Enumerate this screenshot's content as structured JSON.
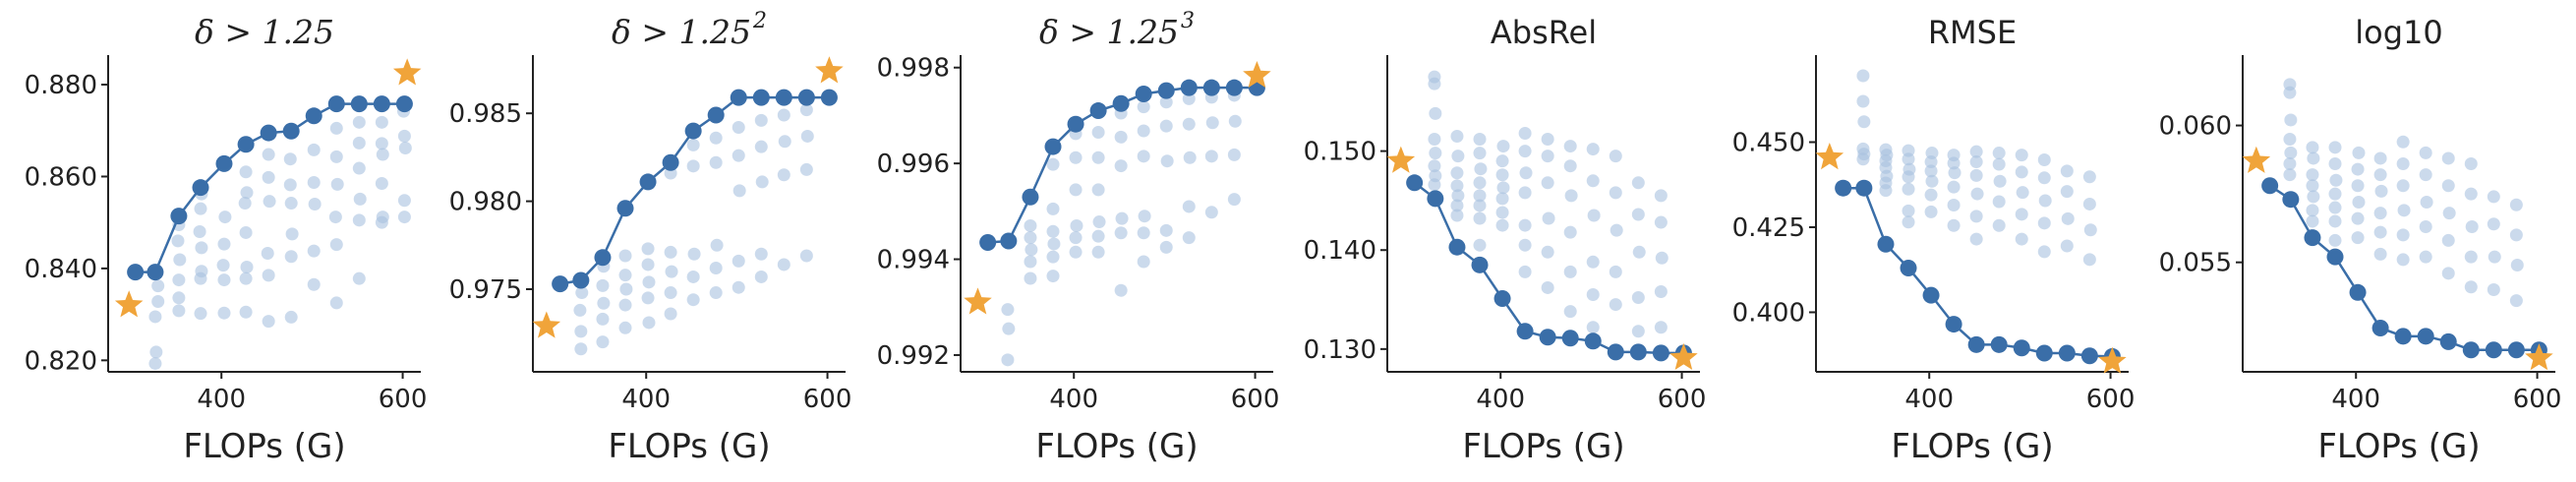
{
  "figure": {
    "colors": {
      "pareto": "#3a6ea8",
      "candidates": "#a9c1df",
      "star": "#f0a43a",
      "axis": "#222222"
    },
    "icons": {
      "reference_marker": "star-icon"
    }
  },
  "chart_data": [
    {
      "type": "scatter",
      "title": "δ > 1.25",
      "xlabel": "FLOPs (G)",
      "ylabel": "",
      "xlim": [
        275,
        620
      ],
      "ylim": [
        0.8175,
        0.886
      ],
      "xticks": [
        400,
        600
      ],
      "xtick_labels": [
        "400",
        "600"
      ],
      "yticks": [
        0.82,
        0.84,
        0.86,
        0.88
      ],
      "ytick_labels": [
        "0.820",
        "0.840",
        "0.860",
        "0.880"
      ],
      "reference": {
        "x": 298,
        "y": 0.832
      },
      "reference2": {
        "x": 605,
        "y": 0.8825
      },
      "pareto": {
        "x": [
          305,
          327,
          353,
          377,
          403,
          427,
          452,
          477,
          502,
          527,
          552,
          577,
          602
        ],
        "y": [
          0.8392,
          0.8392,
          0.8514,
          0.8576,
          0.8628,
          0.867,
          0.8695,
          0.8699,
          0.8732,
          0.8758,
          0.8758,
          0.8758,
          0.8758
        ]
      },
      "candidates": {
        "x": [
          327,
          328,
          327,
          330,
          330,
          353,
          353,
          353,
          354,
          352,
          353,
          377,
          377,
          378,
          378,
          376,
          377,
          378,
          403,
          403,
          402,
          403,
          404,
          427,
          427,
          428,
          427,
          426,
          428,
          427,
          452,
          452,
          451,
          453,
          452,
          452,
          477,
          477,
          478,
          477,
          476,
          476,
          502,
          502,
          503,
          502,
          502,
          527,
          527,
          526,
          528,
          527,
          527,
          552,
          552,
          553,
          552,
          552,
          552,
          577,
          578,
          577,
          578,
          577,
          577,
          602,
          602,
          603,
          602,
          601
        ],
        "y": [
          0.8193,
          0.8218,
          0.8295,
          0.8328,
          0.8362,
          0.8308,
          0.8336,
          0.8375,
          0.8419,
          0.846,
          0.8495,
          0.8302,
          0.8378,
          0.8394,
          0.8445,
          0.848,
          0.853,
          0.8562,
          0.8303,
          0.8375,
          0.8407,
          0.8453,
          0.8512,
          0.8305,
          0.8378,
          0.8403,
          0.8478,
          0.8542,
          0.8565,
          0.861,
          0.8285,
          0.8385,
          0.8433,
          0.8546,
          0.8598,
          0.8648,
          0.8294,
          0.8426,
          0.8475,
          0.8542,
          0.8582,
          0.8638,
          0.8365,
          0.8438,
          0.854,
          0.8587,
          0.8658,
          0.8325,
          0.8452,
          0.8512,
          0.8583,
          0.8643,
          0.8705,
          0.8378,
          0.8505,
          0.8551,
          0.8618,
          0.8673,
          0.8718,
          0.85,
          0.8512,
          0.8585,
          0.8648,
          0.8672,
          0.8718,
          0.8512,
          0.8548,
          0.8662,
          0.8688,
          0.8742
        ]
      }
    },
    {
      "type": "scatter",
      "title": "δ > 1.25",
      "title_superscript": "2",
      "xlabel": "FLOPs (G)",
      "ylabel": "",
      "xlim": [
        275,
        620
      ],
      "ylim": [
        0.9703,
        0.9882
      ],
      "xticks": [
        400,
        600
      ],
      "xtick_labels": [
        "400",
        "600"
      ],
      "yticks": [
        0.975,
        0.98,
        0.985
      ],
      "ytick_labels": [
        "0.975",
        "0.980",
        "0.985"
      ],
      "reference": {
        "x": 290,
        "y": 0.9729
      },
      "reference2": {
        "x": 602,
        "y": 0.9874
      },
      "pareto": {
        "x": [
          305,
          328,
          352,
          377,
          402,
          427,
          452,
          477,
          502,
          527,
          552,
          577,
          602
        ],
        "y": [
          0.9753,
          0.9755,
          0.9768,
          0.9796,
          0.9811,
          0.9822,
          0.984,
          0.9849,
          0.9859,
          0.9859,
          0.9859,
          0.9859,
          0.9859
        ]
      },
      "candidates": {
        "x": [
          328,
          328,
          327,
          329,
          352,
          352,
          353,
          352,
          353,
          377,
          377,
          378,
          377,
          377,
          403,
          402,
          403,
          402,
          402,
          427,
          427,
          428,
          427,
          427,
          452,
          452,
          453,
          452,
          452,
          477,
          477,
          478,
          477,
          477,
          502,
          502,
          503,
          502,
          502,
          527,
          527,
          528,
          527,
          527,
          552,
          552,
          553,
          552,
          577,
          577,
          578,
          577
        ],
        "y": [
          0.9716,
          0.9726,
          0.9738,
          0.9748,
          0.972,
          0.9733,
          0.9742,
          0.9752,
          0.9763,
          0.9728,
          0.9741,
          0.975,
          0.9758,
          0.9769,
          0.9731,
          0.9745,
          0.9754,
          0.9764,
          0.9773,
          0.9736,
          0.9748,
          0.976,
          0.9771,
          0.9816,
          0.9744,
          0.9757,
          0.977,
          0.982,
          0.9832,
          0.9748,
          0.9762,
          0.9775,
          0.9822,
          0.9836,
          0.9751,
          0.9766,
          0.9806,
          0.9826,
          0.9842,
          0.9757,
          0.977,
          0.9811,
          0.9831,
          0.9846,
          0.9764,
          0.9815,
          0.9834,
          0.9849,
          0.9769,
          0.9818,
          0.9837,
          0.9852
        ]
      }
    },
    {
      "type": "scatter",
      "title": "δ > 1.25",
      "title_superscript": "3",
      "xlabel": "FLOPs (G)",
      "ylabel": "",
      "xlim": [
        275,
        620
      ],
      "ylim": [
        0.99165,
        0.99822
      ],
      "xticks": [
        400,
        600
      ],
      "xtick_labels": [
        "400",
        "600"
      ],
      "yticks": [
        0.992,
        0.994,
        0.996,
        0.998
      ],
      "ytick_labels": [
        "0.992",
        "0.994",
        "0.996",
        "0.998"
      ],
      "reference": {
        "x": 294,
        "y": 0.9931
      },
      "reference2": {
        "x": 602,
        "y": 0.99783
      },
      "pareto": {
        "x": [
          305,
          328,
          352,
          377,
          402,
          427,
          452,
          477,
          502,
          527,
          552,
          577,
          602
        ],
        "y": [
          0.99435,
          0.99438,
          0.9953,
          0.99635,
          0.99682,
          0.9971,
          0.99725,
          0.99745,
          0.99752,
          0.99758,
          0.99758,
          0.99758,
          0.99758
        ]
      },
      "candidates": {
        "x": [
          327,
          328,
          327,
          352,
          352,
          353,
          352,
          352,
          377,
          377,
          378,
          377,
          377,
          377,
          402,
          402,
          403,
          402,
          402,
          402,
          427,
          427,
          428,
          427,
          427,
          427,
          452,
          452,
          453,
          452,
          452,
          452,
          477,
          477,
          478,
          477,
          477,
          477,
          502,
          502,
          503,
          502,
          502,
          527,
          527,
          528,
          527,
          527,
          552,
          552,
          553,
          552,
          577,
          577,
          578,
          577
        ],
        "y": [
          0.9919,
          0.99255,
          0.99295,
          0.9936,
          0.99395,
          0.9942,
          0.99445,
          0.9947,
          0.99365,
          0.99405,
          0.99432,
          0.99458,
          0.99505,
          0.99598,
          0.99415,
          0.99445,
          0.9947,
          0.99545,
          0.99612,
          0.99662,
          0.99415,
          0.99448,
          0.99478,
          0.99545,
          0.99612,
          0.99665,
          0.99335,
          0.99455,
          0.99485,
          0.99595,
          0.99655,
          0.99705,
          0.99395,
          0.99455,
          0.9949,
          0.99615,
          0.99668,
          0.99718,
          0.99425,
          0.9946,
          0.99605,
          0.99678,
          0.99728,
          0.99445,
          0.9951,
          0.99612,
          0.99682,
          0.99735,
          0.99498,
          0.99615,
          0.99685,
          0.99738,
          0.99525,
          0.99618,
          0.99688,
          0.99742
        ]
      }
    },
    {
      "type": "scatter",
      "title": "AbsRel",
      "xlabel": "FLOPs (G)",
      "ylabel": "",
      "xlim": [
        275,
        620
      ],
      "ylim": [
        0.1277,
        0.1595
      ],
      "xticks": [
        400,
        600
      ],
      "xtick_labels": [
        "400",
        "600"
      ],
      "yticks": [
        0.13,
        0.14,
        0.15
      ],
      "ytick_labels": [
        "0.130",
        "0.140",
        "0.150"
      ],
      "reference": {
        "x": 290,
        "y": 0.149
      },
      "reference2": {
        "x": 602,
        "y": 0.1291
      },
      "pareto": {
        "x": [
          305,
          328,
          352,
          377,
          402,
          427,
          452,
          477,
          502,
          527,
          552,
          577,
          602
        ],
        "y": [
          0.1468,
          0.1452,
          0.1403,
          0.1385,
          0.1351,
          0.1318,
          0.1312,
          0.1311,
          0.1308,
          0.1297,
          0.1297,
          0.1296,
          0.1296
        ]
      },
      "candidates": {
        "x": [
          327,
          327,
          328,
          327,
          328,
          327,
          328,
          327,
          352,
          353,
          352,
          352,
          353,
          352,
          352,
          377,
          377,
          378,
          377,
          377,
          377,
          377,
          377,
          403,
          402,
          402,
          403,
          402,
          402,
          402,
          427,
          427,
          428,
          427,
          427,
          427,
          427,
          452,
          452,
          452,
          453,
          452,
          452,
          477,
          477,
          478,
          477,
          477,
          477,
          502,
          502,
          503,
          502,
          502,
          502,
          527,
          527,
          528,
          527,
          527,
          552,
          552,
          553,
          552,
          552,
          577,
          577,
          578,
          577,
          577
        ],
        "y": [
          0.1575,
          0.1568,
          0.1538,
          0.1512,
          0.1498,
          0.1485,
          0.1475,
          0.1466,
          0.1515,
          0.1495,
          0.1478,
          0.1465,
          0.1455,
          0.1445,
          0.1435,
          0.1512,
          0.1498,
          0.1482,
          0.1468,
          0.1455,
          0.1445,
          0.1432,
          0.1405,
          0.1505,
          0.149,
          0.1476,
          0.1463,
          0.1452,
          0.1438,
          0.1425,
          0.1518,
          0.15,
          0.1478,
          0.1458,
          0.1425,
          0.1405,
          0.1378,
          0.1512,
          0.1495,
          0.1468,
          0.1432,
          0.1398,
          0.1362,
          0.1505,
          0.1485,
          0.1455,
          0.1418,
          0.1378,
          0.1338,
          0.1502,
          0.147,
          0.1435,
          0.1388,
          0.1355,
          0.1322,
          0.1495,
          0.1458,
          0.142,
          0.1378,
          0.1345,
          0.1468,
          0.1436,
          0.1398,
          0.1352,
          0.1318,
          0.1455,
          0.1428,
          0.1392,
          0.1358,
          0.1322
        ]
      }
    },
    {
      "type": "scatter",
      "title": "RMSE",
      "xlabel": "FLOPs (G)",
      "ylabel": "",
      "xlim": [
        275,
        620
      ],
      "ylim": [
        0.3825,
        0.475
      ],
      "xticks": [
        400,
        600
      ],
      "xtick_labels": [
        "400",
        "600"
      ],
      "yticks": [
        0.4,
        0.425,
        0.45
      ],
      "ytick_labels": [
        "0.400",
        "0.425",
        "0.450"
      ],
      "reference": {
        "x": 290,
        "y": 0.4455
      },
      "reference2": {
        "x": 602,
        "y": 0.3855
      },
      "pareto": {
        "x": [
          305,
          328,
          352,
          377,
          402,
          427,
          452,
          477,
          502,
          527,
          552,
          577,
          602
        ],
        "y": [
          0.4365,
          0.4365,
          0.42,
          0.413,
          0.405,
          0.3965,
          0.3905,
          0.3905,
          0.3895,
          0.388,
          0.388,
          0.3872,
          0.387
        ]
      },
      "candidates": {
        "x": [
          327,
          327,
          328,
          327,
          328,
          327,
          352,
          353,
          352,
          352,
          353,
          352,
          352,
          377,
          377,
          378,
          377,
          377,
          377,
          377,
          403,
          402,
          402,
          403,
          402,
          402,
          427,
          427,
          428,
          427,
          427,
          427,
          452,
          452,
          452,
          453,
          452,
          452,
          477,
          477,
          478,
          477,
          477,
          502,
          502,
          503,
          502,
          502,
          527,
          527,
          528,
          527,
          527,
          552,
          552,
          553,
          552,
          577,
          577,
          578,
          577
        ],
        "y": [
          0.4695,
          0.462,
          0.456,
          0.448,
          0.4465,
          0.445,
          0.4478,
          0.4462,
          0.4445,
          0.4425,
          0.44,
          0.438,
          0.4358,
          0.4475,
          0.445,
          0.442,
          0.4398,
          0.4362,
          0.4298,
          0.4265,
          0.4468,
          0.4442,
          0.4415,
          0.4385,
          0.4345,
          0.4295,
          0.4462,
          0.4438,
          0.441,
          0.4368,
          0.4315,
          0.4255,
          0.4472,
          0.4442,
          0.4402,
          0.4348,
          0.4282,
          0.4215,
          0.4468,
          0.4435,
          0.4385,
          0.4325,
          0.4255,
          0.4462,
          0.4412,
          0.4352,
          0.4288,
          0.4215,
          0.4448,
          0.4395,
          0.4328,
          0.4262,
          0.4178,
          0.4415,
          0.4355,
          0.4275,
          0.4195,
          0.4398,
          0.4318,
          0.4242,
          0.4155
        ]
      }
    },
    {
      "type": "scatter",
      "title": "log10",
      "xlabel": "FLOPs (G)",
      "ylabel": "",
      "xlim": [
        275,
        620
      ],
      "ylim": [
        0.051,
        0.0625
      ],
      "xticks": [
        400,
        600
      ],
      "xtick_labels": [
        "400",
        "600"
      ],
      "yticks": [
        0.055,
        0.06
      ],
      "ytick_labels": [
        "0.055",
        "0.060"
      ],
      "reference": {
        "x": 290,
        "y": 0.0587
      },
      "reference2": {
        "x": 602,
        "y": 0.0515
      },
      "pareto": {
        "x": [
          305,
          328,
          352,
          377,
          402,
          427,
          452,
          477,
          502,
          527,
          552,
          577,
          602
        ],
        "y": [
          0.0578,
          0.0573,
          0.0559,
          0.0552,
          0.0539,
          0.0526,
          0.0523,
          0.0523,
          0.0521,
          0.0518,
          0.0518,
          0.0518,
          0.0518
        ]
      },
      "candidates": {
        "x": [
          327,
          327,
          328,
          327,
          328,
          327,
          327,
          352,
          353,
          352,
          352,
          353,
          352,
          352,
          377,
          377,
          378,
          377,
          377,
          377,
          377,
          403,
          402,
          402,
          403,
          402,
          402,
          427,
          427,
          428,
          427,
          427,
          427,
          452,
          452,
          452,
          453,
          452,
          452,
          477,
          477,
          478,
          477,
          477,
          502,
          502,
          503,
          502,
          502,
          527,
          527,
          528,
          527,
          527,
          552,
          552,
          553,
          552,
          577,
          577,
          578,
          577
        ],
        "y": [
          0.0615,
          0.0612,
          0.0602,
          0.0595,
          0.059,
          0.0586,
          0.0582,
          0.0592,
          0.0588,
          0.0582,
          0.0578,
          0.0574,
          0.0569,
          0.0565,
          0.0592,
          0.0586,
          0.058,
          0.0575,
          0.057,
          0.0565,
          0.0558,
          0.059,
          0.0584,
          0.0578,
          0.0572,
          0.0566,
          0.0559,
          0.0588,
          0.0582,
          0.0576,
          0.0568,
          0.0561,
          0.0553,
          0.0594,
          0.0586,
          0.0578,
          0.0569,
          0.056,
          0.0551,
          0.059,
          0.0582,
          0.0572,
          0.0563,
          0.0552,
          0.0588,
          0.0578,
          0.0568,
          0.0558,
          0.0546,
          0.0586,
          0.0575,
          0.0563,
          0.0552,
          0.0541,
          0.0574,
          0.0564,
          0.0552,
          0.054,
          0.0571,
          0.056,
          0.0549,
          0.0536
        ]
      }
    }
  ]
}
